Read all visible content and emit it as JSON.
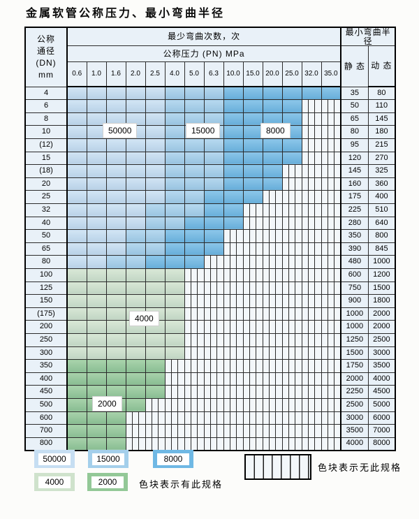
{
  "title": "金属软管公称压力、最小弯曲半径",
  "header": {
    "dn_lines": [
      "公称",
      "通径",
      "(DN)",
      "mm"
    ],
    "bend_cycles": "最少弯曲次数，次",
    "pressure": "公称压力 (PN) MPa",
    "radius": "最小弯曲半径",
    "static": "静 态",
    "dynamic": "动 态",
    "pressures": [
      "0.6",
      "1.0",
      "1.6",
      "2.0",
      "2.5",
      "4.0",
      "5.0",
      "6.3",
      "10.0",
      "15.0",
      "20.0",
      "25.0",
      "32.0",
      "35.0"
    ]
  },
  "overlays": {
    "c50000": "50000",
    "c15000": "15000",
    "c8000": "8000",
    "c4000": "4000",
    "c2000": "2000"
  },
  "legend": {
    "cycles": [
      "50000",
      "15000",
      "8000",
      "4000",
      "2000"
    ],
    "available_note": "色块表示有此规格",
    "unavailable_note": "色块表示无此规格"
  },
  "colors": {
    "b1": "#c6def2",
    "b2": "#a4cfeb",
    "b3": "#6fb8e4",
    "g1": "#cfe2cc",
    "g2": "#93c897",
    "hb": "#f3f7fa",
    "hd": "#e9f1f8"
  },
  "table": {
    "rows": [
      {
        "dn": "4",
        "s": "35",
        "d": "80",
        "cells": [
          "b1",
          "b1",
          "b1",
          "b1",
          "b1",
          "b2",
          "b2",
          "b2",
          "b3",
          "b3",
          "b3",
          "b3",
          "b3",
          "b3"
        ]
      },
      {
        "dn": "6",
        "s": "50",
        "d": "110",
        "cells": [
          "b1",
          "b1",
          "b1",
          "b1",
          "b1",
          "b2",
          "b2",
          "b2",
          "b3",
          "b3",
          "b3",
          "b3",
          "h",
          "h"
        ]
      },
      {
        "dn": "8",
        "s": "65",
        "d": "145",
        "cells": [
          "b1",
          "b1",
          "b1",
          "b1",
          "b1",
          "b2",
          "b2",
          "b2",
          "b3",
          "b3",
          "b3",
          "b3",
          "h",
          "h"
        ]
      },
      {
        "dn": "10",
        "s": "80",
        "d": "180",
        "cells": [
          "b1",
          "b1",
          "b1",
          "b1",
          "b1",
          "b2",
          "b2",
          "b2",
          "b3",
          "b3",
          "b3",
          "b3",
          "h",
          "h"
        ]
      },
      {
        "dn": "(12)",
        "s": "95",
        "d": "215",
        "cells": [
          "b1",
          "b1",
          "b1",
          "b1",
          "b1",
          "b2",
          "b2",
          "b2",
          "b3",
          "b3",
          "b3",
          "b3",
          "h",
          "h"
        ]
      },
      {
        "dn": "15",
        "s": "120",
        "d": "270",
        "cells": [
          "b1",
          "b1",
          "b1",
          "b1",
          "b1",
          "b2",
          "b2",
          "b2",
          "b3",
          "b3",
          "b3",
          "b3",
          "h",
          "h"
        ]
      },
      {
        "dn": "(18)",
        "s": "145",
        "d": "325",
        "cells": [
          "b1",
          "b1",
          "b1",
          "b1",
          "b1",
          "b2",
          "b2",
          "b2",
          "b3",
          "b3",
          "b3",
          "h",
          "h",
          "h"
        ]
      },
      {
        "dn": "20",
        "s": "160",
        "d": "360",
        "cells": [
          "b1",
          "b1",
          "b1",
          "b1",
          "b1",
          "b2",
          "b2",
          "b2",
          "b3",
          "b3",
          "b3",
          "h",
          "h",
          "h"
        ]
      },
      {
        "dn": "25",
        "s": "175",
        "d": "400",
        "cells": [
          "b1",
          "b1",
          "b1",
          "b1",
          "b1",
          "b2",
          "b2",
          "b3",
          "b3",
          "b3",
          "h",
          "h",
          "h",
          "h"
        ]
      },
      {
        "dn": "32",
        "s": "225",
        "d": "510",
        "cells": [
          "b1",
          "b1",
          "b1",
          "b1",
          "b2",
          "b2",
          "b2",
          "b3",
          "b3",
          "h",
          "h",
          "h",
          "h",
          "h"
        ]
      },
      {
        "dn": "40",
        "s": "280",
        "d": "640",
        "cells": [
          "b1",
          "b1",
          "b1",
          "b1",
          "b2",
          "b2",
          "b3",
          "b3",
          "b3",
          "h",
          "h",
          "h",
          "h",
          "h"
        ]
      },
      {
        "dn": "50",
        "s": "350",
        "d": "800",
        "cells": [
          "b1",
          "b1",
          "b1",
          "b2",
          "b2",
          "b3",
          "b3",
          "b3",
          "h",
          "h",
          "h",
          "h",
          "h",
          "h"
        ]
      },
      {
        "dn": "65",
        "s": "390",
        "d": "845",
        "cells": [
          "b1",
          "b1",
          "b1",
          "b2",
          "b2",
          "b3",
          "b3",
          "b3",
          "h",
          "h",
          "h",
          "h",
          "h",
          "h"
        ]
      },
      {
        "dn": "80",
        "s": "480",
        "d": "1000",
        "cells": [
          "b1",
          "b1",
          "b2",
          "b2",
          "b3",
          "b3",
          "b3",
          "h",
          "h",
          "h",
          "h",
          "h",
          "h",
          "h"
        ]
      },
      {
        "dn": "100",
        "s": "600",
        "d": "1200",
        "cells": [
          "g1",
          "g1",
          "g1",
          "g1",
          "g1",
          "g1",
          "h",
          "h",
          "h",
          "h",
          "h",
          "h",
          "h",
          "h"
        ]
      },
      {
        "dn": "125",
        "s": "750",
        "d": "1500",
        "cells": [
          "g1",
          "g1",
          "g1",
          "g1",
          "g1",
          "g1",
          "h",
          "h",
          "h",
          "h",
          "h",
          "h",
          "h",
          "h"
        ]
      },
      {
        "dn": "150",
        "s": "900",
        "d": "1800",
        "cells": [
          "g1",
          "g1",
          "g1",
          "g1",
          "g1",
          "g1",
          "h",
          "h",
          "h",
          "h",
          "h",
          "h",
          "h",
          "h"
        ]
      },
      {
        "dn": "(175)",
        "s": "1000",
        "d": "2000",
        "cells": [
          "g1",
          "g1",
          "g1",
          "g1",
          "g1",
          "g1",
          "h",
          "h",
          "h",
          "h",
          "h",
          "h",
          "h",
          "h"
        ]
      },
      {
        "dn": "200",
        "s": "1000",
        "d": "2000",
        "cells": [
          "g1",
          "g1",
          "g1",
          "g1",
          "g1",
          "g1",
          "h",
          "h",
          "h",
          "h",
          "h",
          "h",
          "h",
          "h"
        ]
      },
      {
        "dn": "250",
        "s": "1250",
        "d": "2500",
        "cells": [
          "g1",
          "g1",
          "g1",
          "g1",
          "g1",
          "g1",
          "h",
          "h",
          "h",
          "h",
          "h",
          "h",
          "h",
          "h"
        ]
      },
      {
        "dn": "300",
        "s": "1500",
        "d": "3000",
        "cells": [
          "g1",
          "g1",
          "g1",
          "g1",
          "g1",
          "g1",
          "h",
          "h",
          "h",
          "h",
          "h",
          "h",
          "h",
          "h"
        ]
      },
      {
        "dn": "350",
        "s": "1750",
        "d": "3500",
        "cells": [
          "g2",
          "g2",
          "g2",
          "g2",
          "g2",
          "h",
          "h",
          "h",
          "h",
          "h",
          "h",
          "h",
          "h",
          "h"
        ]
      },
      {
        "dn": "400",
        "s": "2000",
        "d": "4000",
        "cells": [
          "g2",
          "g2",
          "g2",
          "g2",
          "g2",
          "h",
          "h",
          "h",
          "h",
          "h",
          "h",
          "h",
          "h",
          "h"
        ]
      },
      {
        "dn": "450",
        "s": "2250",
        "d": "4500",
        "cells": [
          "g2",
          "g2",
          "g2",
          "g2",
          "g2",
          "h",
          "h",
          "h",
          "h",
          "h",
          "h",
          "h",
          "h",
          "h"
        ]
      },
      {
        "dn": "500",
        "s": "2500",
        "d": "5000",
        "cells": [
          "g2",
          "g2",
          "g2",
          "g2",
          "h",
          "h",
          "h",
          "h",
          "h",
          "h",
          "h",
          "h",
          "h",
          "h"
        ]
      },
      {
        "dn": "600",
        "s": "3000",
        "d": "6000",
        "cells": [
          "g2",
          "g2",
          "g2",
          "h",
          "h",
          "h",
          "h",
          "h",
          "h",
          "h",
          "h",
          "h",
          "h",
          "h"
        ]
      },
      {
        "dn": "700",
        "s": "3500",
        "d": "7000",
        "cells": [
          "g2",
          "g2",
          "g2",
          "h",
          "h",
          "h",
          "h",
          "h",
          "h",
          "h",
          "h",
          "h",
          "h",
          "h"
        ]
      },
      {
        "dn": "800",
        "s": "4000",
        "d": "8000",
        "cells": [
          "g2",
          "g2",
          "g2",
          "h",
          "h",
          "h",
          "h",
          "h",
          "h",
          "h",
          "h",
          "h",
          "h",
          "h"
        ]
      }
    ]
  }
}
